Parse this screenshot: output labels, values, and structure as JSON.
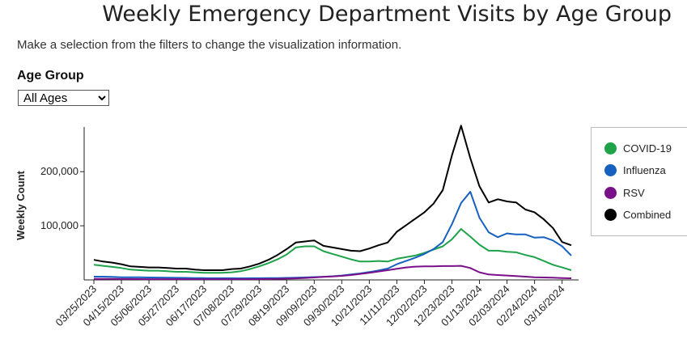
{
  "header": {
    "title": "Weekly Emergency Department Visits by Age Group",
    "instructions": "Make a selection from the filters to change the visualization information."
  },
  "filters": {
    "age_group_label": "Age Group",
    "age_group_selected": "All Ages"
  },
  "colors": {
    "covid": "#1ea34a",
    "influenza": "#1660c0",
    "rsv": "#7a0f8a",
    "combined": "#000000"
  },
  "chart_data": {
    "type": "line",
    "ylabel": "Weekly Count",
    "xlabel": "",
    "ylim": [
      0,
      290000
    ],
    "yticks": [
      100000,
      200000
    ],
    "ytick_labels": [
      "100,000",
      "200,000"
    ],
    "grid": false,
    "legend_position": "right",
    "x": [
      "03/25/2023",
      "04/01/2023",
      "04/08/2023",
      "04/15/2023",
      "04/22/2023",
      "04/29/2023",
      "05/06/2023",
      "05/13/2023",
      "05/20/2023",
      "05/27/2023",
      "06/03/2023",
      "06/10/2023",
      "06/17/2023",
      "06/24/2023",
      "07/01/2023",
      "07/08/2023",
      "07/15/2023",
      "07/22/2023",
      "07/29/2023",
      "08/05/2023",
      "08/12/2023",
      "08/19/2023",
      "08/26/2023",
      "09/02/2023",
      "09/09/2023",
      "09/16/2023",
      "09/23/2023",
      "09/30/2023",
      "10/07/2023",
      "10/14/2023",
      "10/21/2023",
      "10/28/2023",
      "11/04/2023",
      "11/11/2023",
      "11/18/2023",
      "11/25/2023",
      "12/02/2023",
      "12/09/2023",
      "12/16/2023",
      "12/23/2023",
      "12/30/2023",
      "01/06/2024",
      "01/13/2024",
      "01/20/2024",
      "01/27/2024",
      "02/03/2024",
      "02/10/2024",
      "02/17/2024",
      "02/24/2024",
      "03/02/2024",
      "03/09/2024",
      "03/16/2024",
      "03/23/2024"
    ],
    "x_tick_labels": [
      "03/25/2023",
      "04/15/2023",
      "05/06/2023",
      "05/27/2023",
      "06/17/2023",
      "07/08/2023",
      "07/29/2023",
      "08/19/2023",
      "09/09/2023",
      "09/30/2023",
      "10/21/2023",
      "11/11/2023",
      "12/02/2023",
      "12/23/2023",
      "01/13/2024",
      "02/03/2024",
      "02/24/2024",
      "03/16/2024"
    ],
    "series": [
      {
        "name": "COVID-19",
        "color_key": "covid",
        "values": [
          28000,
          26000,
          24000,
          22000,
          19000,
          18000,
          17000,
          17000,
          16000,
          15000,
          15000,
          14000,
          13000,
          13000,
          13000,
          14000,
          16000,
          20000,
          25000,
          31000,
          38000,
          47000,
          60000,
          62000,
          62000,
          53000,
          48000,
          43000,
          38000,
          34000,
          34000,
          35000,
          34000,
          39000,
          42000,
          45000,
          50000,
          56000,
          62000,
          75000,
          94000,
          80000,
          65000,
          54000,
          54000,
          52000,
          51000,
          46000,
          42000,
          35000,
          28000,
          23000,
          18000
        ]
      },
      {
        "name": "Influenza",
        "color_key": "influenza",
        "values": [
          6000,
          6000,
          5500,
          5000,
          5000,
          4800,
          4500,
          4300,
          4000,
          3900,
          3700,
          3500,
          3300,
          3200,
          3100,
          3100,
          3000,
          3100,
          3200,
          3300,
          3500,
          3800,
          4200,
          4700,
          5200,
          5800,
          6700,
          8000,
          10000,
          12000,
          14500,
          17500,
          21000,
          29000,
          35000,
          41000,
          48000,
          57000,
          70000,
          103000,
          142000,
          163000,
          115000,
          88000,
          79000,
          86000,
          84000,
          84000,
          78000,
          79000,
          73000,
          62000,
          45000
        ]
      },
      {
        "name": "RSV",
        "color_key": "rsv",
        "values": [
          2000,
          1900,
          1800,
          1700,
          1600,
          1500,
          1400,
          1400,
          1300,
          1300,
          1300,
          1300,
          1300,
          1300,
          1300,
          1300,
          1300,
          1400,
          1500,
          1700,
          2000,
          2400,
          2900,
          3600,
          4500,
          5500,
          6500,
          7500,
          9000,
          11000,
          13000,
          15500,
          18000,
          20500,
          23000,
          24500,
          25000,
          25000,
          25500,
          25500,
          26000,
          22000,
          14000,
          10000,
          9000,
          8000,
          7000,
          6000,
          5000,
          4500,
          4000,
          3500,
          3000
        ]
      },
      {
        "name": "Combined",
        "color_key": "combined",
        "values": [
          37000,
          34000,
          32000,
          29000,
          25000,
          24000,
          23000,
          23000,
          22000,
          21000,
          21000,
          19000,
          18000,
          18000,
          18000,
          20000,
          21000,
          25000,
          30000,
          37000,
          46000,
          57000,
          69000,
          71000,
          73000,
          63000,
          60000,
          57000,
          54000,
          53000,
          58000,
          64000,
          69000,
          89000,
          101000,
          113000,
          125000,
          141000,
          166000,
          230000,
          285000,
          225000,
          173000,
          143000,
          149000,
          145000,
          143000,
          130000,
          125000,
          112000,
          96000,
          70000,
          64000
        ]
      }
    ]
  }
}
